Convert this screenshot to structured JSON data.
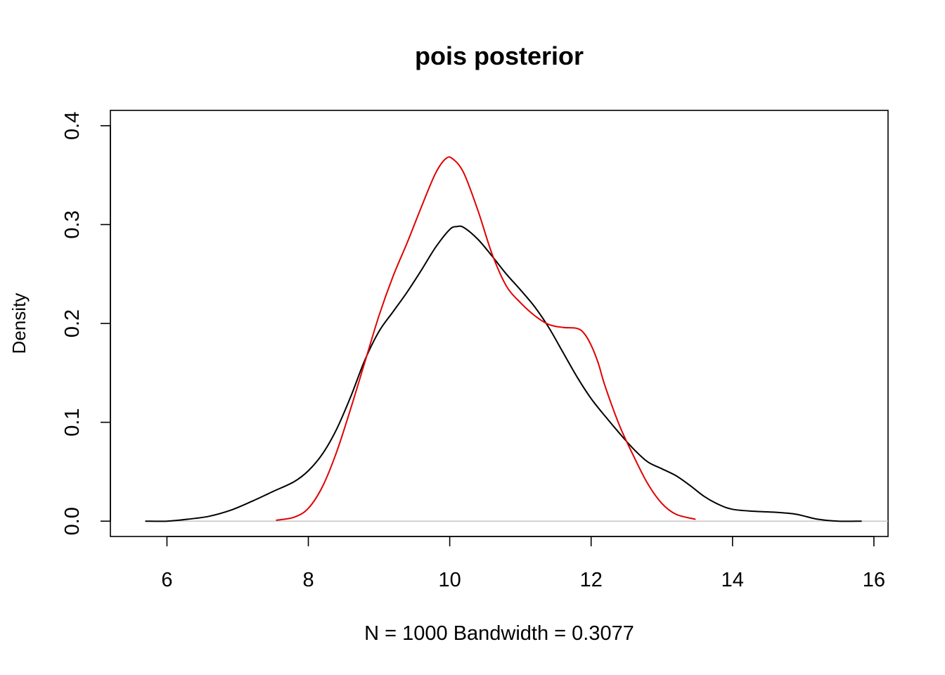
{
  "chart_data": {
    "type": "line",
    "title": "pois posterior",
    "xlabel": "N = 1000   Bandwidth = 0.3077",
    "ylabel": "Density",
    "xlim": [
      5.2,
      16.2
    ],
    "ylim": [
      -0.0155,
      0.4155
    ],
    "x_ticks": [
      6,
      8,
      10,
      12,
      14,
      16
    ],
    "y_ticks": [
      0.0,
      0.1,
      0.2,
      0.3,
      0.4
    ],
    "x_tick_labels": [
      "6",
      "8",
      "10",
      "12",
      "14",
      "16"
    ],
    "y_tick_labels": [
      "0.0",
      "0.1",
      "0.2",
      "0.3",
      "0.4"
    ],
    "baseline": {
      "y": 0,
      "color": "#c0c0c0"
    },
    "grid": false,
    "series": [
      {
        "color": "#000000",
        "points": [
          [
            5.7,
            0.0
          ],
          [
            6.0,
            0.0
          ],
          [
            6.3,
            0.002
          ],
          [
            6.6,
            0.005
          ],
          [
            6.9,
            0.011
          ],
          [
            7.2,
            0.02
          ],
          [
            7.5,
            0.03
          ],
          [
            7.8,
            0.04
          ],
          [
            8.0,
            0.051
          ],
          [
            8.2,
            0.068
          ],
          [
            8.4,
            0.093
          ],
          [
            8.6,
            0.126
          ],
          [
            8.8,
            0.163
          ],
          [
            9.0,
            0.192
          ],
          [
            9.2,
            0.212
          ],
          [
            9.4,
            0.232
          ],
          [
            9.6,
            0.254
          ],
          [
            9.8,
            0.277
          ],
          [
            10.0,
            0.295
          ],
          [
            10.1,
            0.298
          ],
          [
            10.2,
            0.297
          ],
          [
            10.4,
            0.285
          ],
          [
            10.6,
            0.268
          ],
          [
            10.8,
            0.25
          ],
          [
            11.0,
            0.234
          ],
          [
            11.2,
            0.217
          ],
          [
            11.4,
            0.196
          ],
          [
            11.6,
            0.171
          ],
          [
            11.8,
            0.146
          ],
          [
            12.0,
            0.124
          ],
          [
            12.2,
            0.106
          ],
          [
            12.4,
            0.089
          ],
          [
            12.6,
            0.073
          ],
          [
            12.8,
            0.06
          ],
          [
            13.0,
            0.053
          ],
          [
            13.2,
            0.046
          ],
          [
            13.4,
            0.036
          ],
          [
            13.6,
            0.025
          ],
          [
            13.8,
            0.017
          ],
          [
            14.0,
            0.012
          ],
          [
            14.3,
            0.01
          ],
          [
            14.6,
            0.009
          ],
          [
            14.9,
            0.007
          ],
          [
            15.2,
            0.002
          ],
          [
            15.5,
            0.0
          ],
          [
            15.82,
            0.0
          ]
        ]
      },
      {
        "color": "#e00000",
        "points": [
          [
            7.55,
            0.001
          ],
          [
            7.8,
            0.004
          ],
          [
            8.0,
            0.013
          ],
          [
            8.2,
            0.035
          ],
          [
            8.4,
            0.07
          ],
          [
            8.6,
            0.114
          ],
          [
            8.8,
            0.161
          ],
          [
            9.0,
            0.208
          ],
          [
            9.2,
            0.248
          ],
          [
            9.4,
            0.282
          ],
          [
            9.6,
            0.318
          ],
          [
            9.8,
            0.352
          ],
          [
            9.95,
            0.367
          ],
          [
            10.05,
            0.366
          ],
          [
            10.2,
            0.352
          ],
          [
            10.4,
            0.314
          ],
          [
            10.6,
            0.27
          ],
          [
            10.8,
            0.238
          ],
          [
            11.0,
            0.221
          ],
          [
            11.2,
            0.208
          ],
          [
            11.4,
            0.199
          ],
          [
            11.6,
            0.196
          ],
          [
            11.8,
            0.195
          ],
          [
            11.9,
            0.19
          ],
          [
            12.0,
            0.178
          ],
          [
            12.1,
            0.16
          ],
          [
            12.2,
            0.136
          ],
          [
            12.4,
            0.097
          ],
          [
            12.6,
            0.066
          ],
          [
            12.8,
            0.038
          ],
          [
            13.0,
            0.018
          ],
          [
            13.2,
            0.007
          ],
          [
            13.47,
            0.002
          ]
        ]
      }
    ]
  }
}
